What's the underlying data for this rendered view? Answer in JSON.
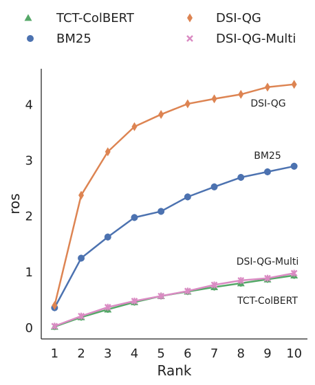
{
  "chart_data": {
    "type": "line",
    "title": "",
    "xlabel": "Rank",
    "ylabel": "ros",
    "x": [
      1,
      2,
      3,
      4,
      5,
      6,
      7,
      8,
      9,
      10
    ],
    "xlim": [
      0.5,
      10.5
    ],
    "ylim": [
      -0.2,
      4.65
    ],
    "yticks": [
      0,
      1,
      2,
      3,
      4
    ],
    "grid": false,
    "legend_placement": "top",
    "series": [
      {
        "name": "TCT-ColBERT",
        "marker": "triangle",
        "color": "#55a868",
        "values": [
          0.02,
          0.19,
          0.33,
          0.46,
          0.57,
          0.65,
          0.73,
          0.8,
          0.87,
          0.94
        ]
      },
      {
        "name": "BM25",
        "marker": "circle",
        "color": "#4c72b0",
        "values": [
          0.36,
          1.25,
          1.63,
          1.98,
          2.09,
          2.35,
          2.53,
          2.7,
          2.8,
          2.9
        ]
      },
      {
        "name": "DSI-QG",
        "marker": "diamond",
        "color": "#dd8452",
        "values": [
          0.4,
          2.38,
          3.16,
          3.61,
          3.83,
          4.02,
          4.11,
          4.19,
          4.32,
          4.37
        ]
      },
      {
        "name": "DSI-QG-Multi",
        "marker": "x",
        "color": "#da8bc3",
        "values": [
          0.03,
          0.21,
          0.37,
          0.48,
          0.57,
          0.66,
          0.77,
          0.85,
          0.89,
          0.98
        ]
      }
    ],
    "annotations": [
      {
        "text": "DSI-QG",
        "series": "DSI-QG"
      },
      {
        "text": "BM25",
        "series": "BM25"
      },
      {
        "text": "DSI-QG-Multi",
        "series": "DSI-QG-Multi"
      },
      {
        "text": "TCT-ColBERT",
        "series": "TCT-ColBERT"
      }
    ]
  }
}
